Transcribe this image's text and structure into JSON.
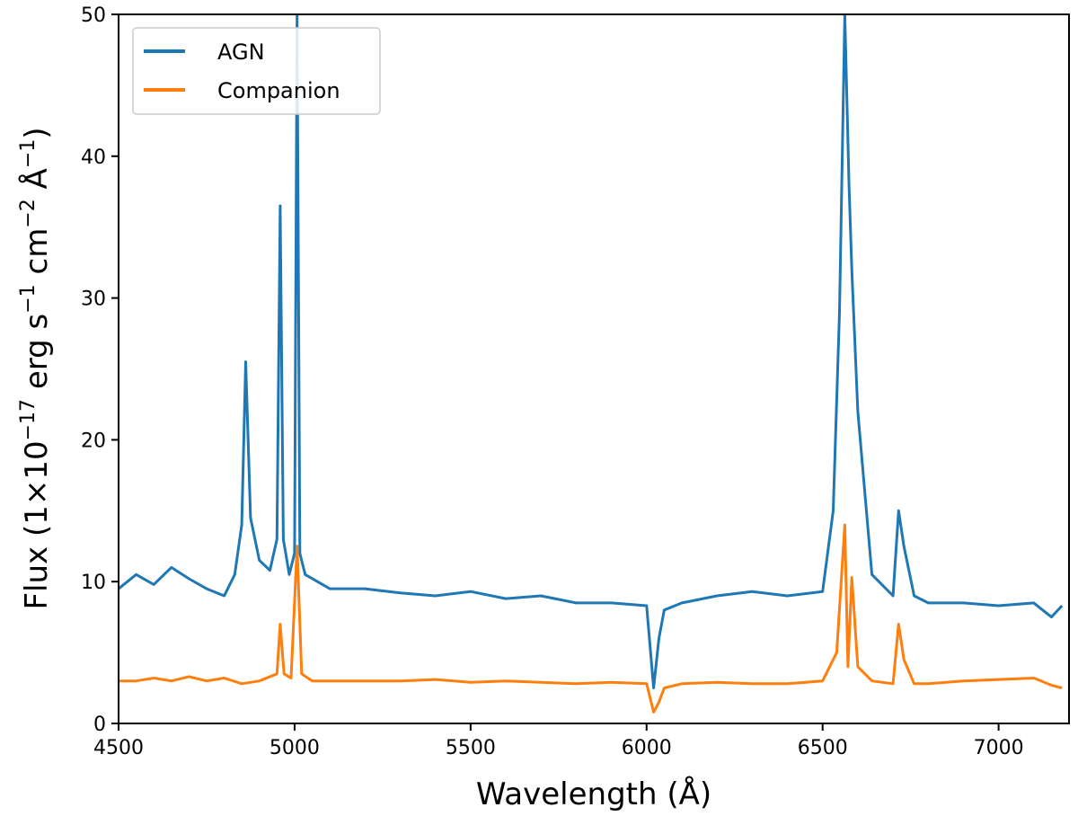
{
  "chart_data": {
    "type": "line",
    "title": "",
    "xlabel": "Wavelength (Å)",
    "ylabel_parts": {
      "prefix": "Flux (1×10",
      "exp1": "−17",
      "mid1": " erg s",
      "exp2": "−1",
      "mid2": " cm",
      "exp3": "−2",
      "mid3": " Å",
      "exp4": "−1",
      "suffix": ")"
    },
    "xlim": [
      4500,
      7200
    ],
    "ylim": [
      0,
      50
    ],
    "xticks": [
      4500,
      5000,
      5500,
      6000,
      6500,
      7000
    ],
    "yticks": [
      0,
      10,
      20,
      30,
      40,
      50
    ],
    "xtick_labels": [
      "4500",
      "5000",
      "5500",
      "6000",
      "6500",
      "7000"
    ],
    "ytick_labels": [
      "0",
      "10",
      "20",
      "30",
      "40",
      "50"
    ],
    "legend_position": "upper-left",
    "series": [
      {
        "name": "AGN",
        "color": "#1f77b4",
        "x": [
          4500,
          4550,
          4600,
          4650,
          4700,
          4750,
          4800,
          4830,
          4850,
          4861,
          4875,
          4900,
          4930,
          4950,
          4959,
          4968,
          4985,
          5000,
          5007,
          5015,
          5030,
          5100,
          5200,
          5300,
          5400,
          5500,
          5600,
          5700,
          5800,
          5900,
          6000,
          6020,
          6035,
          6050,
          6100,
          6200,
          6300,
          6400,
          6500,
          6530,
          6548,
          6563,
          6575,
          6583,
          6600,
          6640,
          6700,
          6716,
          6731,
          6760,
          6800,
          6900,
          7000,
          7100,
          7150,
          7180
        ],
        "y": [
          9.5,
          10.5,
          9.8,
          11.0,
          10.2,
          9.5,
          9.0,
          10.5,
          14.0,
          25.5,
          14.5,
          11.5,
          10.8,
          13.0,
          36.5,
          13.0,
          10.5,
          12.0,
          50.0,
          12.0,
          10.5,
          9.5,
          9.5,
          9.2,
          9.0,
          9.3,
          8.8,
          9.0,
          8.5,
          8.5,
          8.3,
          2.5,
          6.0,
          8.0,
          8.5,
          9.0,
          9.3,
          9.0,
          9.3,
          15.0,
          29.0,
          50.0,
          38.0,
          32.0,
          22.0,
          10.5,
          9.0,
          15.0,
          12.5,
          9.0,
          8.5,
          8.5,
          8.3,
          8.5,
          7.5,
          8.3
        ]
      },
      {
        "name": "Companion",
        "color": "#ff7f0e",
        "x": [
          4500,
          4550,
          4600,
          4650,
          4700,
          4750,
          4800,
          4850,
          4900,
          4950,
          4959,
          4970,
          4990,
          5007,
          5020,
          5050,
          5100,
          5200,
          5300,
          5400,
          5500,
          5600,
          5700,
          5800,
          5900,
          6000,
          6020,
          6035,
          6050,
          6100,
          6200,
          6300,
          6400,
          6500,
          6540,
          6563,
          6572,
          6583,
          6600,
          6640,
          6700,
          6716,
          6731,
          6760,
          6800,
          6900,
          7000,
          7100,
          7150,
          7180
        ],
        "y": [
          3.0,
          3.0,
          3.2,
          3.0,
          3.3,
          3.0,
          3.2,
          2.8,
          3.0,
          3.5,
          7.0,
          3.5,
          3.2,
          12.5,
          3.5,
          3.0,
          3.0,
          3.0,
          3.0,
          3.1,
          2.9,
          3.0,
          2.9,
          2.8,
          2.9,
          2.8,
          0.8,
          1.5,
          2.5,
          2.8,
          2.9,
          2.8,
          2.8,
          3.0,
          5.0,
          14.0,
          4.0,
          10.3,
          4.0,
          3.0,
          2.8,
          7.0,
          4.5,
          2.8,
          2.8,
          3.0,
          3.1,
          3.2,
          2.7,
          2.5
        ]
      }
    ]
  }
}
